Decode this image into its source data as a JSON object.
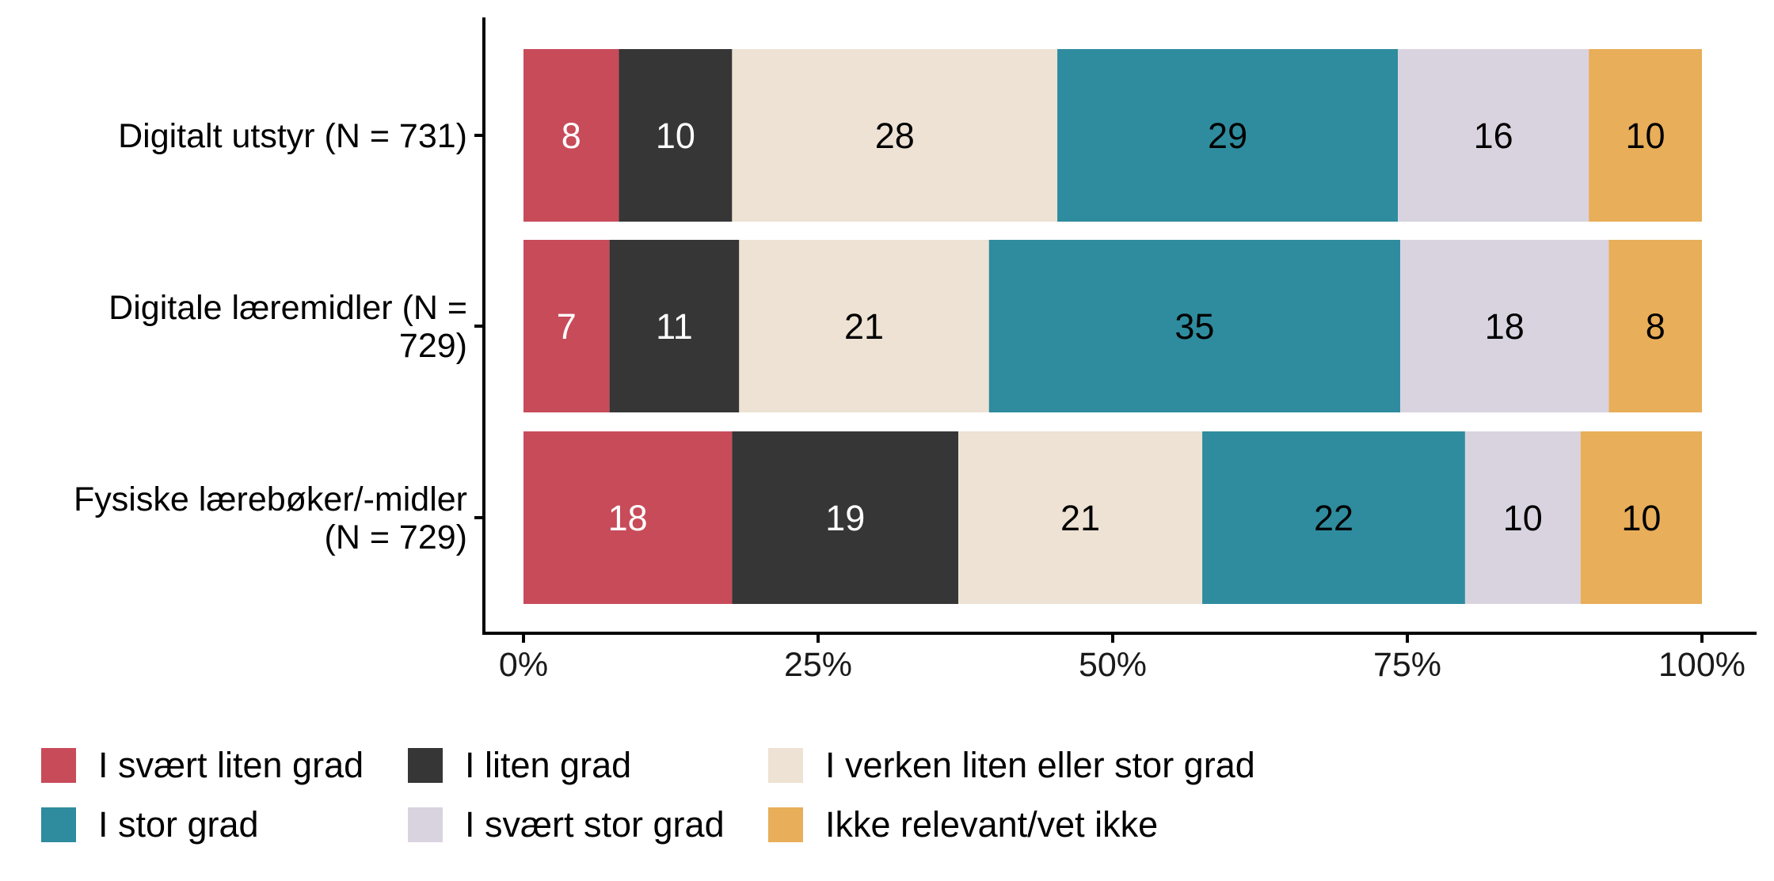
{
  "chart_data": {
    "type": "bar",
    "orientation": "horizontal",
    "stacked": true,
    "categories": [
      [
        "Digitalt utstyr (N = 731)"
      ],
      [
        "Digitale læremidler (N =",
        "729)"
      ],
      [
        "Fysiske lærebøker/-midler",
        "(N = 729)"
      ]
    ],
    "series": [
      {
        "name": "I svært liten grad",
        "color": "#C84B5A",
        "text_color": "#ffffff",
        "values": [
          8.1,
          7.3,
          17.7
        ]
      },
      {
        "name": "I liten grad",
        "color": "#363636",
        "text_color": "#ffffff",
        "values": [
          9.6,
          11.0,
          19.2
        ]
      },
      {
        "name": "I verken liten eller stor grad",
        "color": "#EDE2D3",
        "text_color": "#000000",
        "values": [
          27.6,
          21.2,
          20.7
        ]
      },
      {
        "name": "I stor grad",
        "color": "#2E8C9E",
        "text_color": "#000000",
        "values": [
          28.9,
          34.9,
          22.3
        ]
      },
      {
        "name": "I svært stor grad",
        "color": "#D9D3E0",
        "text_color": "#000000",
        "values": [
          16.2,
          17.7,
          9.8
        ]
      },
      {
        "name": "Ikke relevant/vet ikke",
        "color": "#E8AE59",
        "text_color": "#000000",
        "values": [
          9.6,
          7.9,
          10.3
        ]
      }
    ],
    "data_labels": [
      [
        8,
        7,
        18
      ],
      [
        10,
        11,
        19
      ],
      [
        28,
        21,
        21
      ],
      [
        29,
        35,
        22
      ],
      [
        16,
        18,
        10
      ],
      [
        10,
        8,
        10
      ]
    ],
    "x_ticks": [
      "0%",
      "25%",
      "50%",
      "75%",
      "100%"
    ],
    "x_tick_values": [
      0,
      25,
      50,
      75,
      100
    ],
    "xlim": [
      0,
      100
    ],
    "xlabel": "",
    "ylabel": "",
    "title": "",
    "grid": false,
    "legend_position": "bottom-left"
  }
}
